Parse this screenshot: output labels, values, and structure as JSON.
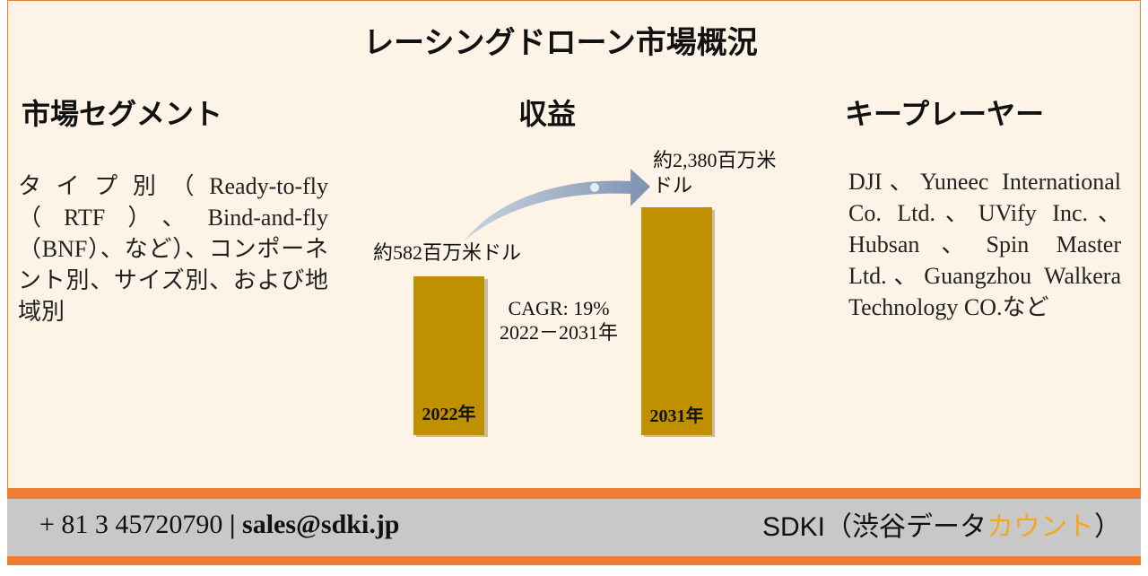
{
  "title": "レーシングドローン市場概況",
  "segments": {
    "heading": "市場セグメント",
    "text": "タイプ別（Ready-to-fly（RTF）、Bind-and-fly（BNF）、など）、コンポーネント別、サイズ別、および地域別"
  },
  "revenue": {
    "heading": "収益",
    "start_label": "約582百万米ドル",
    "start_year": "2022年",
    "end_label": "約2,380百万米ドル",
    "end_year": "2031年",
    "cagr": "CAGR: 19%",
    "period": "2022－2031年"
  },
  "players": {
    "heading": "キープレーヤー",
    "text": "DJI、Yuneec International Co. Ltd.、UVify Inc.、Hubsan、Spin Master Ltd.、Guangzhou Walkera Technology CO.など"
  },
  "footer": {
    "phone": "+ 81 3 45720790",
    "separator": "|",
    "email": "sales@sdki.jp",
    "company": "SDKI（渋谷データ",
    "highlight": "カウント",
    "close": "）"
  }
}
